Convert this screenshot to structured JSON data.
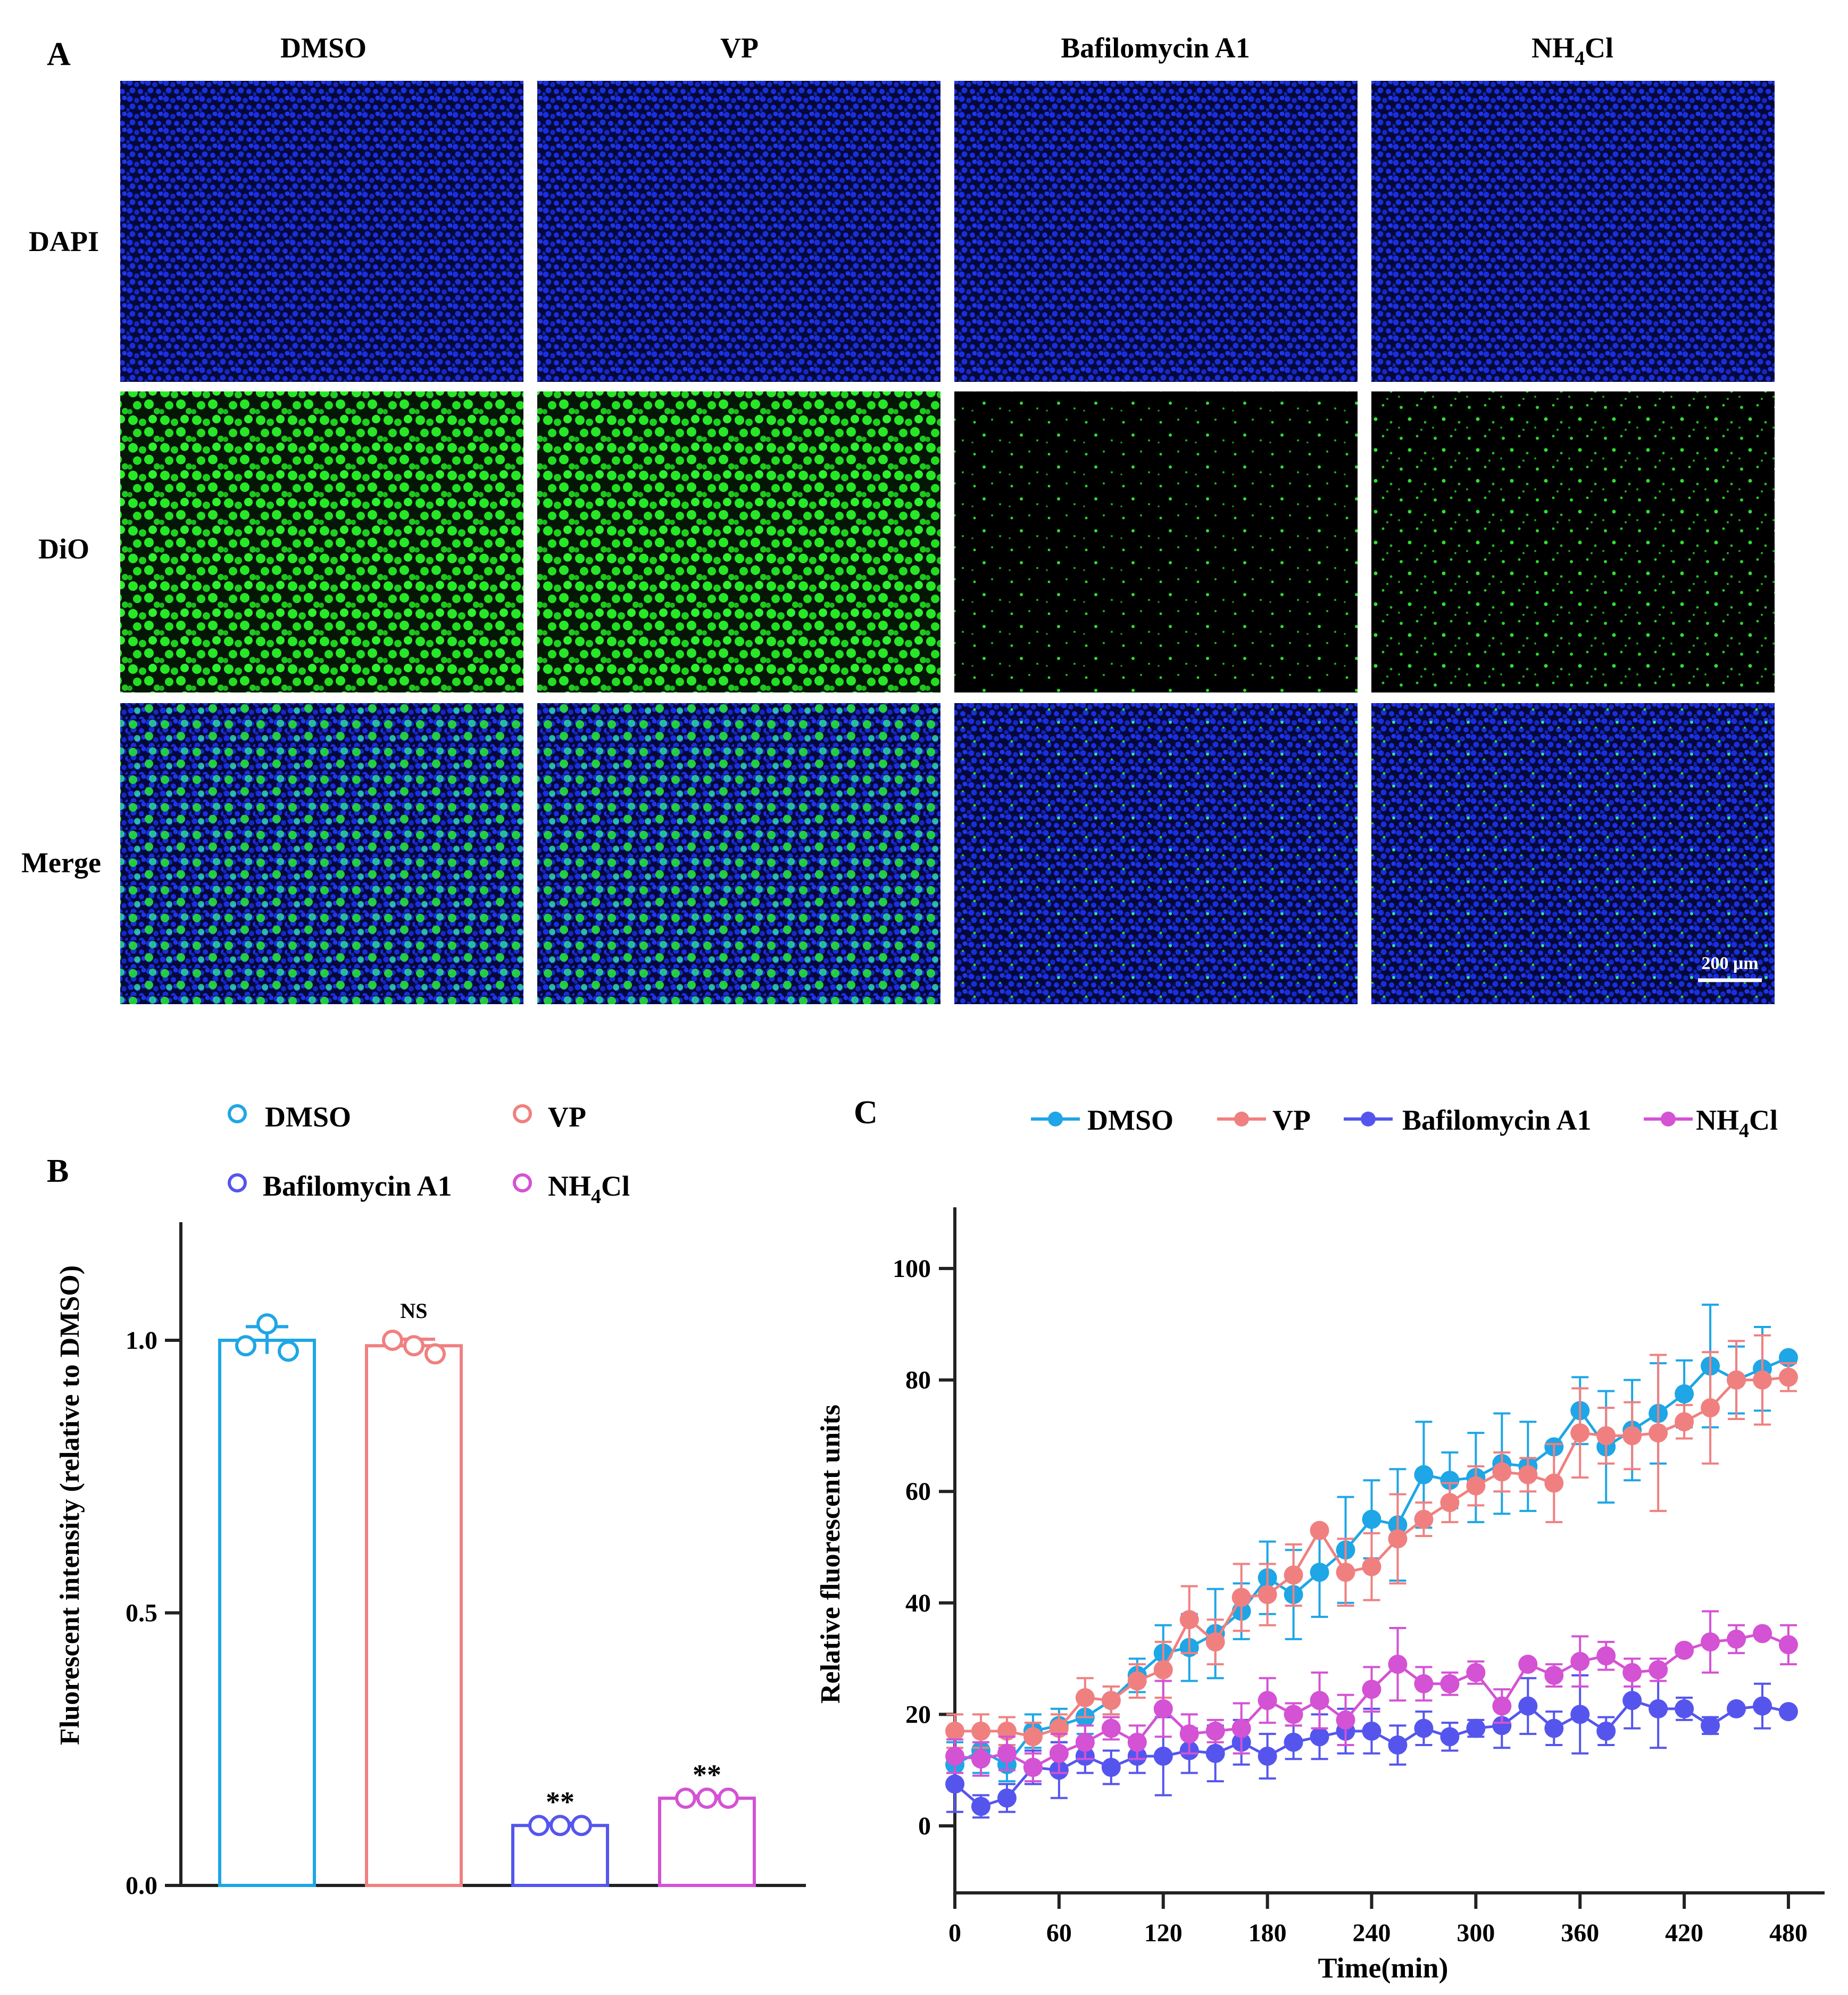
{
  "panel_a": {
    "label": "A",
    "columns": [
      "DMSO",
      "VP",
      "Bafilomycin A1",
      "NH4Cl"
    ],
    "rows": [
      "DAPI",
      "DiO",
      "Merge"
    ],
    "scale_bar": "200 μm",
    "colors": {
      "nuclei": "#1428d0",
      "dio": "#22e022",
      "background": "#000000"
    }
  },
  "panel_b": {
    "label": "B",
    "legend": [
      "DMSO",
      "VP",
      "Bafilomycin A1",
      "NH4Cl"
    ],
    "ylabel": "Fluorescent intensity  (relative to DMSO)",
    "ytick_labels": [
      "0.0",
      "0.5",
      "1.0"
    ],
    "significance": [
      "",
      "NS",
      "**",
      "**"
    ]
  },
  "panel_c": {
    "label": "C",
    "legend": [
      "DMSO",
      "VP",
      "Bafilomycin A1",
      "NH4Cl"
    ],
    "xlabel": "Time(min)",
    "ylabel": "Relative fluorescent units",
    "xtick_labels": [
      "0",
      "60",
      "120",
      "180",
      "240",
      "300",
      "360",
      "420",
      "480"
    ],
    "ytick_labels": [
      "0",
      "20",
      "40",
      "60",
      "80",
      "100"
    ]
  },
  "chart_data": [
    {
      "type": "bar",
      "categories": [
        "DMSO",
        "VP",
        "Bafilomycin A1",
        "NH4Cl"
      ],
      "values": [
        1.0,
        0.99,
        0.11,
        0.16
      ],
      "errors": [
        0.025,
        0.012,
        0.004,
        0.004
      ],
      "points": [
        [
          0.99,
          1.03,
          0.98
        ],
        [
          1.0,
          0.99,
          0.975
        ],
        [
          0.11,
          0.11,
          0.11
        ],
        [
          0.16,
          0.16,
          0.16
        ]
      ],
      "colors": [
        "#1ea6e6",
        "#f08080",
        "#5555ee",
        "#d452d4"
      ],
      "significance": [
        "",
        "NS",
        "**",
        "**"
      ],
      "ylabel": "Fluorescent intensity  (relative to DMSO)",
      "ylim": [
        0,
        1.2
      ],
      "legend_position": "top"
    },
    {
      "type": "line",
      "x": [
        0,
        15,
        30,
        45,
        60,
        75,
        90,
        105,
        120,
        135,
        150,
        165,
        180,
        195,
        210,
        225,
        240,
        255,
        270,
        285,
        300,
        315,
        330,
        345,
        360,
        375,
        390,
        405,
        420,
        435,
        450,
        465,
        480
      ],
      "series": [
        {
          "name": "DMSO",
          "color": "#1ea6e6",
          "values": [
            11,
            13.5,
            11,
            17,
            18,
            19.5,
            22.5,
            27,
            31,
            32,
            34.5,
            38.5,
            44.5,
            41.5,
            45.5,
            49.5,
            55,
            54,
            63,
            62,
            62.5,
            65,
            64.5,
            68,
            74.5,
            68,
            71,
            74,
            77.5,
            82.5,
            80,
            82,
            84
          ],
          "errors": [
            4,
            4,
            3,
            3,
            3,
            3,
            2.5,
            3,
            5,
            6,
            8,
            5,
            6.5,
            8,
            8,
            9.5,
            7,
            10,
            9.5,
            5,
            8,
            9,
            8,
            0,
            6,
            10,
            9,
            9,
            6,
            11,
            6,
            7.5,
            0
          ]
        },
        {
          "name": "VP",
          "color": "#f08080",
          "values": [
            17,
            17,
            17,
            16,
            17.5,
            23,
            22.5,
            26,
            28,
            37,
            33,
            41,
            41.5,
            45,
            53,
            45.5,
            46.5,
            51.5,
            55,
            58,
            61,
            63.5,
            63,
            61.5,
            70.5,
            70,
            70,
            70.5,
            72.5,
            75,
            80,
            80,
            80.5
          ],
          "errors": [
            3,
            3,
            2.5,
            2.5,
            2.5,
            3.5,
            2.5,
            3,
            5,
            6,
            4,
            6,
            5.5,
            5.5,
            0,
            6,
            6,
            8,
            3,
            3.5,
            3.5,
            3.5,
            3,
            7,
            8,
            5,
            6,
            14,
            3,
            10,
            7,
            8,
            2.5
          ]
        },
        {
          "name": "Bafilomycin A1",
          "color": "#5555ee",
          "values": [
            7.5,
            3.5,
            5,
            10.5,
            10,
            12.5,
            10.5,
            12.5,
            12.5,
            13.5,
            13,
            15,
            12.5,
            15,
            16,
            17,
            17,
            14.5,
            17.5,
            16,
            17.5,
            18,
            21.5,
            17.5,
            20,
            17,
            22.5,
            21,
            21,
            18,
            21,
            21.5,
            20.5
          ],
          "errors": [
            5,
            2,
            2.5,
            3,
            5,
            3,
            3,
            3,
            7,
            4,
            5,
            4,
            4,
            3,
            4,
            4,
            4,
            3.5,
            3,
            2.5,
            1.5,
            4,
            5,
            3,
            7,
            2.5,
            5,
            7,
            2,
            1.5,
            0,
            4,
            0
          ]
        },
        {
          "name": "NH4Cl",
          "color": "#d452d4",
          "values": [
            12.5,
            12,
            13,
            10.5,
            13,
            15,
            17.5,
            15,
            21,
            16.5,
            17,
            17.5,
            22.5,
            20,
            22.5,
            19,
            24.5,
            29,
            25.5,
            25.5,
            27.5,
            21.5,
            29,
            27,
            29.5,
            30.5,
            27.5,
            28,
            31.5,
            33,
            33.5,
            34.5,
            32.5
          ],
          "errors": [
            3,
            3,
            3,
            2.5,
            3.5,
            3,
            2,
            3,
            5,
            3.5,
            2,
            4.5,
            4,
            2,
            5,
            4.5,
            4,
            6.5,
            3,
            2,
            2,
            3,
            0,
            2,
            4.5,
            2.5,
            2.5,
            2,
            0,
            5.5,
            2.5,
            0,
            3.5
          ]
        }
      ],
      "xlabel": "Time(min)",
      "ylabel": "Relative fluorescent units",
      "xlim": [
        0,
        480
      ],
      "ylim": [
        0,
        110
      ],
      "legend_position": "top"
    }
  ]
}
